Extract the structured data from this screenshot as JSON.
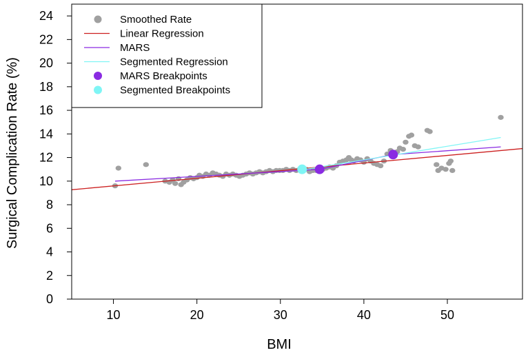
{
  "chart_data": {
    "type": "scatter",
    "title": "",
    "xlabel": "BMI",
    "ylabel": "Surgical Complication Rate (%)",
    "xlim": [
      5,
      59
    ],
    "ylim": [
      0,
      25
    ],
    "xticks": [
      10,
      20,
      30,
      40,
      50
    ],
    "yticks": [
      0,
      2,
      4,
      6,
      8,
      10,
      12,
      14,
      16,
      18,
      20,
      22,
      24
    ],
    "grid": false,
    "legend_position": "top-left",
    "legend": [
      {
        "label": "Smoothed Rate",
        "kind": "point",
        "color": "#a0a0a0"
      },
      {
        "label": "Linear Regression",
        "kind": "line",
        "color": "#cc1f1f"
      },
      {
        "label": "MARS",
        "kind": "line",
        "color": "#8a2be2"
      },
      {
        "label": "Segmented Regression",
        "kind": "line",
        "color": "#7ff5f5"
      },
      {
        "label": "MARS Breakpoints",
        "kind": "point",
        "color": "#8a2be2"
      },
      {
        "label": "Segmented Breakpoints",
        "kind": "point",
        "color": "#7ff5f5"
      }
    ],
    "series": [
      {
        "name": "Smoothed Rate",
        "kind": "scatter",
        "color": "#a0a0a0",
        "points": [
          [
            10.2,
            9.6
          ],
          [
            10.6,
            11.1
          ],
          [
            13.9,
            11.4
          ],
          [
            16.2,
            10.0
          ],
          [
            16.7,
            9.9
          ],
          [
            17.1,
            10.1
          ],
          [
            17.4,
            9.8
          ],
          [
            17.8,
            10.2
          ],
          [
            18.1,
            9.7
          ],
          [
            18.4,
            9.9
          ],
          [
            18.8,
            10.1
          ],
          [
            19.2,
            10.3
          ],
          [
            19.6,
            10.2
          ],
          [
            20.0,
            10.3
          ],
          [
            20.3,
            10.5
          ],
          [
            20.7,
            10.4
          ],
          [
            21.1,
            10.6
          ],
          [
            21.5,
            10.5
          ],
          [
            21.9,
            10.7
          ],
          [
            22.3,
            10.6
          ],
          [
            22.7,
            10.5
          ],
          [
            23.1,
            10.4
          ],
          [
            23.5,
            10.6
          ],
          [
            23.9,
            10.5
          ],
          [
            24.3,
            10.6
          ],
          [
            24.7,
            10.5
          ],
          [
            25.1,
            10.4
          ],
          [
            25.5,
            10.5
          ],
          [
            25.9,
            10.6
          ],
          [
            26.3,
            10.7
          ],
          [
            26.7,
            10.6
          ],
          [
            27.1,
            10.7
          ],
          [
            27.5,
            10.8
          ],
          [
            27.9,
            10.7
          ],
          [
            28.3,
            10.8
          ],
          [
            28.7,
            10.9
          ],
          [
            29.1,
            10.8
          ],
          [
            29.5,
            10.9
          ],
          [
            29.9,
            10.9
          ],
          [
            30.3,
            10.9
          ],
          [
            30.7,
            11.0
          ],
          [
            31.1,
            10.9
          ],
          [
            31.5,
            11.0
          ],
          [
            31.9,
            10.9
          ],
          [
            32.3,
            11.0
          ],
          [
            32.7,
            10.9
          ],
          [
            33.1,
            11.0
          ],
          [
            33.5,
            10.8
          ],
          [
            33.9,
            10.9
          ],
          [
            34.3,
            10.9
          ],
          [
            34.7,
            11.0
          ],
          [
            35.1,
            11.0
          ],
          [
            35.5,
            11.1
          ],
          [
            35.9,
            11.2
          ],
          [
            36.3,
            11.1
          ],
          [
            36.7,
            11.3
          ],
          [
            37.1,
            11.6
          ],
          [
            37.5,
            11.7
          ],
          [
            37.9,
            11.8
          ],
          [
            38.2,
            12.0
          ],
          [
            38.5,
            11.8
          ],
          [
            38.8,
            11.7
          ],
          [
            39.2,
            11.9
          ],
          [
            39.6,
            11.8
          ],
          [
            40.0,
            11.6
          ],
          [
            40.4,
            11.9
          ],
          [
            40.8,
            11.7
          ],
          [
            41.2,
            11.5
          ],
          [
            41.6,
            11.4
          ],
          [
            42.0,
            11.3
          ],
          [
            42.4,
            11.7
          ],
          [
            42.8,
            12.3
          ],
          [
            43.2,
            12.6
          ],
          [
            43.6,
            12.4
          ],
          [
            44.0,
            12.5
          ],
          [
            44.3,
            12.8
          ],
          [
            44.7,
            12.7
          ],
          [
            45.0,
            13.3
          ],
          [
            45.4,
            13.8
          ],
          [
            45.7,
            13.9
          ],
          [
            46.1,
            13.0
          ],
          [
            46.5,
            12.9
          ],
          [
            47.6,
            14.3
          ],
          [
            47.9,
            14.2
          ],
          [
            48.7,
            11.4
          ],
          [
            48.9,
            10.9
          ],
          [
            49.3,
            11.1
          ],
          [
            49.8,
            11.0
          ],
          [
            50.2,
            11.5
          ],
          [
            50.4,
            11.7
          ],
          [
            50.6,
            10.9
          ],
          [
            56.4,
            15.4
          ]
        ]
      },
      {
        "name": "Linear Regression",
        "kind": "line",
        "color": "#cc1f1f",
        "points": [
          [
            5,
            9.27
          ],
          [
            59,
            12.76
          ]
        ]
      },
      {
        "name": "MARS",
        "kind": "line",
        "color": "#8a2be2",
        "points": [
          [
            10.2,
            10.0
          ],
          [
            34.7,
            11.0
          ],
          [
            43.5,
            12.25
          ],
          [
            56.4,
            12.9
          ]
        ]
      },
      {
        "name": "Segmented Regression",
        "kind": "line",
        "color": "#7ff5f5",
        "points": [
          [
            32.6,
            10.95
          ],
          [
            43.5,
            12.2
          ],
          [
            56.4,
            13.7
          ]
        ]
      },
      {
        "name": "MARS Breakpoints",
        "kind": "breakpoints",
        "color": "#8a2be2",
        "points": [
          [
            34.7,
            11.0
          ],
          [
            43.5,
            12.25
          ]
        ]
      },
      {
        "name": "Segmented Breakpoints",
        "kind": "breakpoints",
        "color": "#7ff5f5",
        "points": [
          [
            32.6,
            11.0
          ]
        ]
      }
    ]
  }
}
